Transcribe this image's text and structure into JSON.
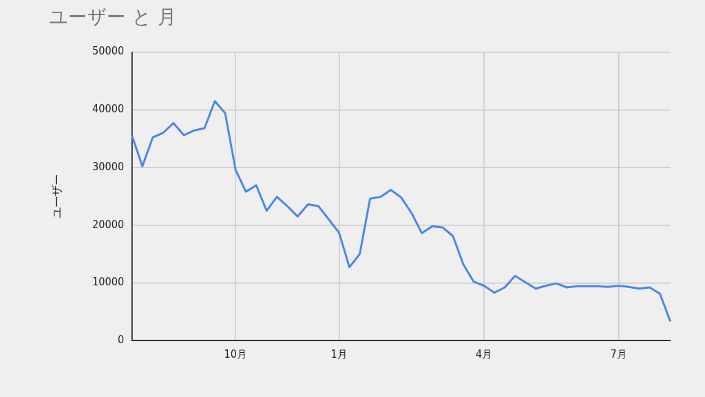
{
  "chart_data": {
    "type": "line",
    "title": "ユーザー と 月",
    "ylabel": "ユーザー",
    "categories": [
      null,
      null,
      null,
      null,
      null,
      null,
      null,
      null,
      null,
      null,
      "10月",
      null,
      null,
      null,
      null,
      null,
      null,
      null,
      null,
      null,
      "1月",
      null,
      null,
      null,
      null,
      null,
      null,
      null,
      null,
      null,
      null,
      null,
      null,
      null,
      "4月",
      null,
      null,
      null,
      null,
      null,
      null,
      null,
      null,
      null,
      null,
      null,
      null,
      "7月",
      null,
      null,
      null,
      null,
      null
    ],
    "series": [
      {
        "color": "#4a86e8",
        "values": [
          35500,
          30200,
          35200,
          36000,
          37700,
          35600,
          36400,
          36800,
          41500,
          39400,
          29600,
          25800,
          26900,
          22500,
          24900,
          23300,
          21500,
          23600,
          23300,
          21000,
          18700,
          12700,
          15000,
          24600,
          24900,
          26100,
          24800,
          22100,
          18600,
          19800,
          19600,
          18100,
          13200,
          10200,
          9500,
          8300,
          9200,
          11200,
          10100,
          9000,
          9500,
          9900,
          9200,
          9400,
          9400,
          9400,
          9300,
          9500,
          9300,
          9000,
          9200,
          8100,
          3300
        ]
      }
    ],
    "ylim": [
      0,
      50000
    ],
    "yticks": [
      0,
      10000,
      20000,
      30000,
      40000,
      50000
    ],
    "grid": true,
    "legend": false,
    "marker": "none",
    "line_style": "solid"
  }
}
